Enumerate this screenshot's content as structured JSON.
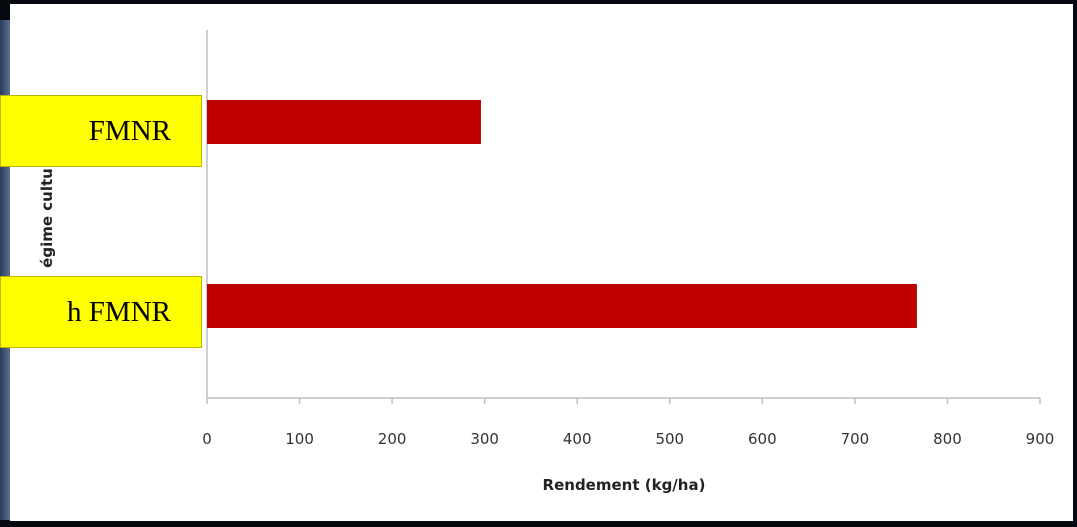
{
  "chart_data": {
    "type": "bar",
    "orientation": "horizontal",
    "categories": [
      "FMNR",
      "h FMNR"
    ],
    "values": [
      296,
      767
    ],
    "title": "",
    "xlabel": "Rendement (kg/ha)",
    "ylabel": "égime cultu",
    "xlim": [
      0,
      900
    ],
    "xticks": [
      "0",
      "100",
      "200",
      "300",
      "400",
      "500",
      "600",
      "700",
      "800",
      "900"
    ],
    "grid": false,
    "legend": "none",
    "bar_color": "#c00000"
  }
}
